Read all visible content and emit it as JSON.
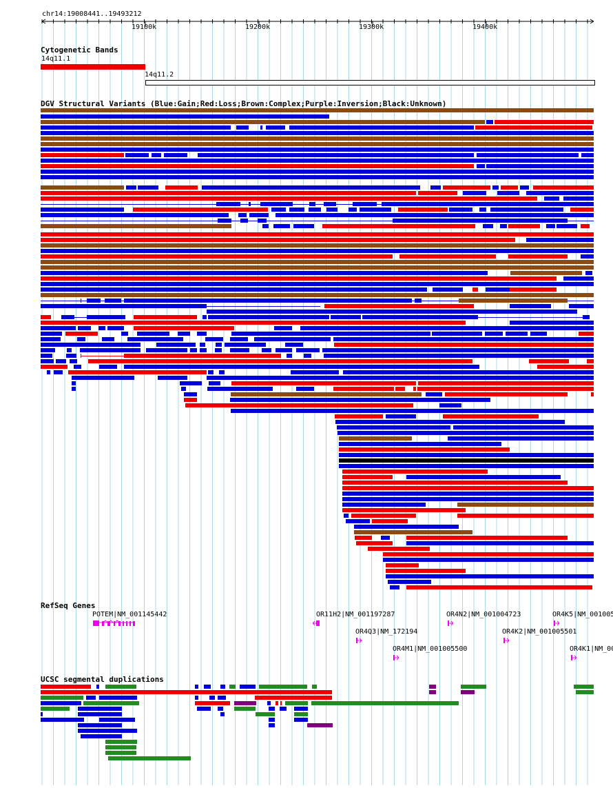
{
  "ruler": {
    "location": "chr14:19008441..19493212",
    "ticks": [
      "19100k",
      "19200k",
      "19300k",
      "19400k"
    ]
  },
  "cytoband": {
    "title": "Cytogenetic Bands",
    "bands": [
      {
        "name": "14q11.1",
        "color": "#ee0000"
      },
      {
        "name": "14q11.2",
        "color": "#ffffff"
      }
    ]
  },
  "dgv": {
    "title": "DGV Structural Variants (Blue:Gain;Red:Loss;Brown:Complex;Purple:Inversion;Black:Unknown)",
    "colors": {
      "gain": "#0000dd",
      "loss": "#ee0000",
      "complex": "#8b4a14",
      "inversion": "#800080",
      "unknown": "#000000"
    }
  },
  "refseq": {
    "title": "RefSeq Genes",
    "color": "#ee00ee",
    "genes": [
      {
        "label": "POTEM|NM_001145442",
        "strand": "+"
      },
      {
        "label": "OR11H2|NM_001197287",
        "strand": "-"
      },
      {
        "label": "OR4Q3|NM_172194",
        "strand": "+"
      },
      {
        "label": "OR4M1|NM_001005500",
        "strand": "+"
      },
      {
        "label": "OR4N2|NM_001004723",
        "strand": "+"
      },
      {
        "label": "OR4K2|NM_001005501",
        "strand": "+"
      },
      {
        "label": "OR4K5|NM_001005",
        "strand": "+"
      },
      {
        "label": "OR4K1|NM_00",
        "strand": "+"
      }
    ]
  },
  "segdups": {
    "title": "UCSC segmental duplications",
    "colors": {
      "red": "#ee0000",
      "green": "#228b22",
      "blue": "#0000dd",
      "purple": "#800080"
    }
  }
}
